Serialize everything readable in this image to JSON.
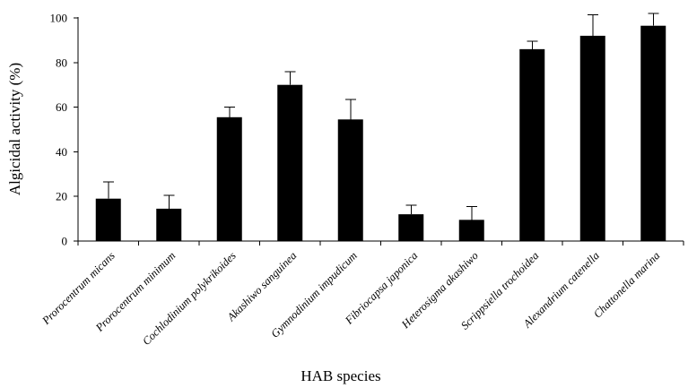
{
  "chart_data": {
    "type": "bar",
    "title": "",
    "xlabel": "HAB species",
    "ylabel": "Algicidal activity (%)",
    "ylim": [
      0,
      100
    ],
    "yticks": [
      0,
      20,
      40,
      60,
      80,
      100
    ],
    "grid": false,
    "categories": [
      "Prorocentrum micans",
      "Prorocentrum minimum",
      "Cochlodinium polykrikoides",
      "Akashiwo sanguinea",
      "Gymnodinium impudicum",
      "Fibriocapsa japonica",
      "Heterosigma akashiwo",
      "Scrippsiella trochoidea",
      "Alexandrium catenella",
      "Chattonella marina"
    ],
    "values": [
      19,
      14.5,
      55.5,
      70,
      54.5,
      12,
      9.5,
      86,
      92,
      96.5
    ],
    "errors": [
      7.5,
      6,
      4.5,
      6,
      9,
      4,
      6,
      3.5,
      9.5,
      5.5
    ],
    "bar_color": "#000000"
  }
}
